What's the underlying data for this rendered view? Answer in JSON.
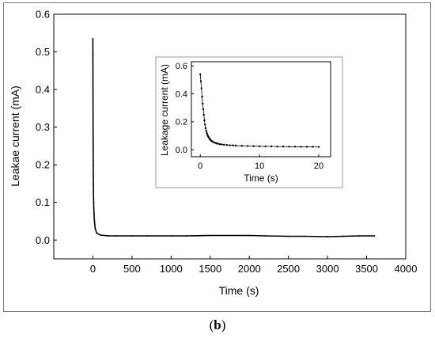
{
  "chart_data": [
    {
      "type": "scatter",
      "xlabel": "Time (s)",
      "ylabel": "Leakae current (mA)",
      "xlim": [
        -500,
        4000
      ],
      "ylim": [
        -0.05,
        0.6
      ],
      "xticks": [
        0,
        500,
        1000,
        1500,
        2000,
        2500,
        3000,
        3500,
        4000
      ],
      "yticks": [
        0.0,
        0.1,
        0.2,
        0.3,
        0.4,
        0.5,
        0.6
      ],
      "ytick_labels": [
        "0.0",
        "0.1",
        "0.2",
        "0.3",
        "0.4",
        "0.5",
        "0.6"
      ],
      "series": [
        {
          "x": [
            0,
            1,
            2,
            3,
            4,
            5,
            6,
            7,
            8,
            9,
            10,
            12,
            15,
            20,
            30,
            50,
            100,
            200,
            300,
            500,
            700,
            1000,
            1200,
            1500,
            1700,
            2000,
            2200,
            2500,
            2700,
            3000,
            3200,
            3400,
            3600
          ],
          "y": [
            0.535,
            0.49,
            0.37,
            0.3,
            0.24,
            0.2,
            0.17,
            0.145,
            0.125,
            0.11,
            0.1,
            0.085,
            0.07,
            0.05,
            0.03,
            0.018,
            0.013,
            0.011,
            0.011,
            0.011,
            0.011,
            0.011,
            0.011,
            0.012,
            0.012,
            0.012,
            0.011,
            0.01,
            0.01,
            0.009,
            0.01,
            0.011,
            0.011
          ]
        }
      ]
    },
    {
      "type": "scatter",
      "xlabel": "Time (s)",
      "ylabel": "Leakage current (mA)",
      "xlim": [
        -1.5,
        22
      ],
      "ylim": [
        -0.05,
        0.63
      ],
      "xticks": [
        0,
        10,
        20
      ],
      "yticks": [
        0.0,
        0.2,
        0.4,
        0.6
      ],
      "ytick_labels": [
        "0.0",
        "0.2",
        "0.4",
        "0.6"
      ],
      "series": [
        {
          "x": [
            0.0,
            0.1,
            0.2,
            0.3,
            0.4,
            0.5,
            0.6,
            0.7,
            0.8,
            0.9,
            1.0,
            1.1,
            1.2,
            1.3,
            1.4,
            1.5,
            1.6,
            1.7,
            1.8,
            1.9,
            2.0,
            2.2,
            2.4,
            2.6,
            2.8,
            3.0,
            3.3,
            3.6,
            4.0,
            4.5,
            5.0,
            5.5,
            6.0,
            7.0,
            8.0,
            9.0,
            10.0,
            11.0,
            12.0,
            13.0,
            14.0,
            15.0,
            16.0,
            17.0,
            18.0,
            19.0,
            20.0
          ],
          "y": [
            0.54,
            0.49,
            0.44,
            0.38,
            0.33,
            0.29,
            0.25,
            0.21,
            0.18,
            0.155,
            0.135,
            0.12,
            0.108,
            0.098,
            0.09,
            0.083,
            0.077,
            0.072,
            0.067,
            0.063,
            0.06,
            0.055,
            0.051,
            0.048,
            0.045,
            0.043,
            0.04,
            0.038,
            0.036,
            0.034,
            0.032,
            0.031,
            0.03,
            0.028,
            0.027,
            0.026,
            0.025,
            0.024,
            0.024,
            0.023,
            0.023,
            0.022,
            0.022,
            0.021,
            0.021,
            0.021,
            0.02
          ]
        }
      ]
    }
  ],
  "panel_label": "b"
}
